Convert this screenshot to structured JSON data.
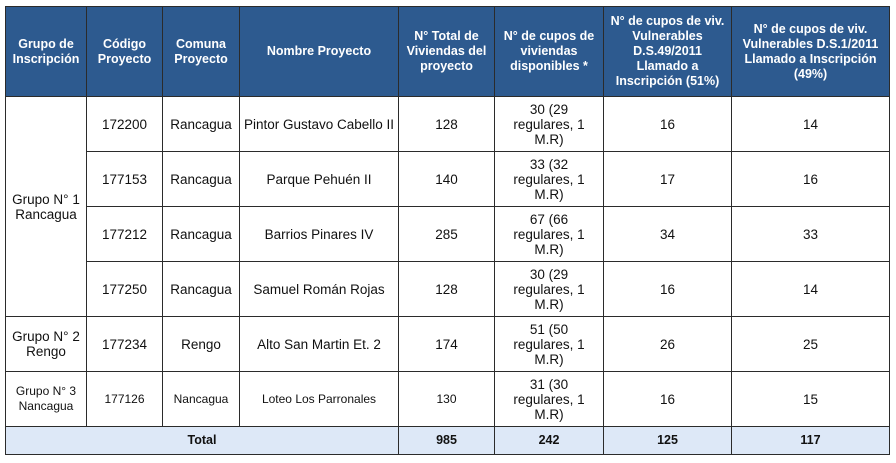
{
  "headers": [
    "Grupo de Inscripción",
    "Código Proyecto",
    "Comuna Proyecto",
    "Nombre Proyecto",
    "N° Total de Viviendas del proyecto",
    "N° de cupos de viviendas disponibles *",
    "N° de cupos de viv. Vulnerables D.S.49/2011 Llamado a Inscripción (51%)",
    "N° de cupos de viv. Vulnerables D.S.1/2011 Llamado a Inscripción (49%)"
  ],
  "groups": [
    "Grupo N° 1 Rancagua",
    "Grupo N° 2 Rengo",
    "Grupo N° 3 Nancagua"
  ],
  "rows": [
    {
      "codigo": "172200",
      "comuna": "Rancagua",
      "nombre": "Pintor Gustavo Cabello II",
      "total": "128",
      "cupos": "30 (29 regulares, 1 M.R)",
      "ds49": "16",
      "ds1": "14"
    },
    {
      "codigo": "177153",
      "comuna": "Rancagua",
      "nombre": "Parque Pehuén II",
      "total": "140",
      "cupos": "33 (32 regulares, 1 M.R)",
      "ds49": "17",
      "ds1": "16"
    },
    {
      "codigo": "177212",
      "comuna": "Rancagua",
      "nombre": "Barrios Pinares IV",
      "total": "285",
      "cupos": "67 (66 regulares, 1 M.R)",
      "ds49": "34",
      "ds1": "33"
    },
    {
      "codigo": "177250",
      "comuna": "Rancagua",
      "nombre": "Samuel Román Rojas",
      "total": "128",
      "cupos": "30 (29 regulares, 1 M.R)",
      "ds49": "16",
      "ds1": "14"
    },
    {
      "codigo": "177234",
      "comuna": "Rengo",
      "nombre": "Alto San Martin Et. 2",
      "total": "174",
      "cupos": "51 (50 regulares, 1 M.R)",
      "ds49": "26",
      "ds1": "25"
    },
    {
      "codigo": "177126",
      "comuna": "Nancagua",
      "nombre": "Loteo Los Parronales",
      "total": "130",
      "cupos": "31 (30 regulares, 1 M.R)",
      "ds49": "16",
      "ds1": "15"
    }
  ],
  "total": {
    "label": "Total",
    "total": "985",
    "cupos": "242",
    "ds49": "125",
    "ds1": "117"
  }
}
